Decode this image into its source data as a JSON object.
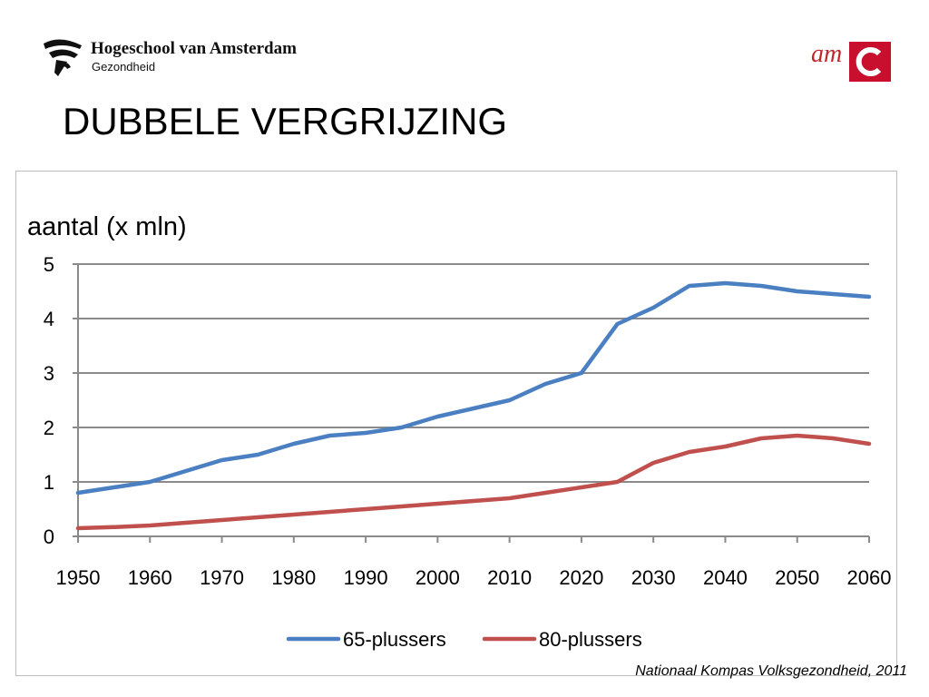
{
  "header": {
    "org_name": "Hogeschool van Amsterdam",
    "org_sub": "Gezondheid",
    "partner_logo_text": "am",
    "title": "DUBBELE VERGRIJZING"
  },
  "source": "Nationaal Kompas Volksgezondheid, 2011",
  "colors": {
    "series_65": "#4a7fc1",
    "series_80": "#c0504d",
    "grid": "#8a8a8a",
    "brand_red": "#c8102e"
  },
  "chart_data": {
    "type": "line",
    "title": "aantal (x mln)",
    "xlabel": "",
    "ylabel": "aantal (x mln)",
    "x": [
      1950,
      1955,
      1960,
      1965,
      1970,
      1975,
      1980,
      1985,
      1990,
      1995,
      2000,
      2005,
      2010,
      2015,
      2020,
      2025,
      2030,
      2035,
      2040,
      2045,
      2050,
      2055,
      2060
    ],
    "x_ticks": [
      "1950",
      "1960",
      "1970",
      "1980",
      "1990",
      "2000",
      "2010",
      "2020",
      "2030",
      "2040",
      "2050",
      "2060"
    ],
    "y_ticks": [
      "0",
      "1",
      "2",
      "3",
      "4",
      "5"
    ],
    "xlim": [
      1950,
      2060
    ],
    "ylim": [
      0,
      5
    ],
    "grid": true,
    "legend_position": "bottom-center",
    "series": [
      {
        "name": "65-plussers",
        "color": "#4a7fc1",
        "values": [
          0.8,
          0.9,
          1.0,
          1.2,
          1.4,
          1.5,
          1.7,
          1.85,
          1.9,
          2.0,
          2.2,
          2.35,
          2.5,
          2.8,
          3.0,
          3.9,
          4.2,
          4.6,
          4.65,
          4.6,
          4.5,
          4.45,
          4.4
        ]
      },
      {
        "name": "80-plussers",
        "color": "#c0504d",
        "values": [
          0.15,
          0.17,
          0.2,
          0.25,
          0.3,
          0.35,
          0.4,
          0.45,
          0.5,
          0.55,
          0.6,
          0.65,
          0.7,
          0.8,
          0.9,
          1.0,
          1.35,
          1.55,
          1.65,
          1.8,
          1.85,
          1.8,
          1.7
        ]
      }
    ]
  }
}
